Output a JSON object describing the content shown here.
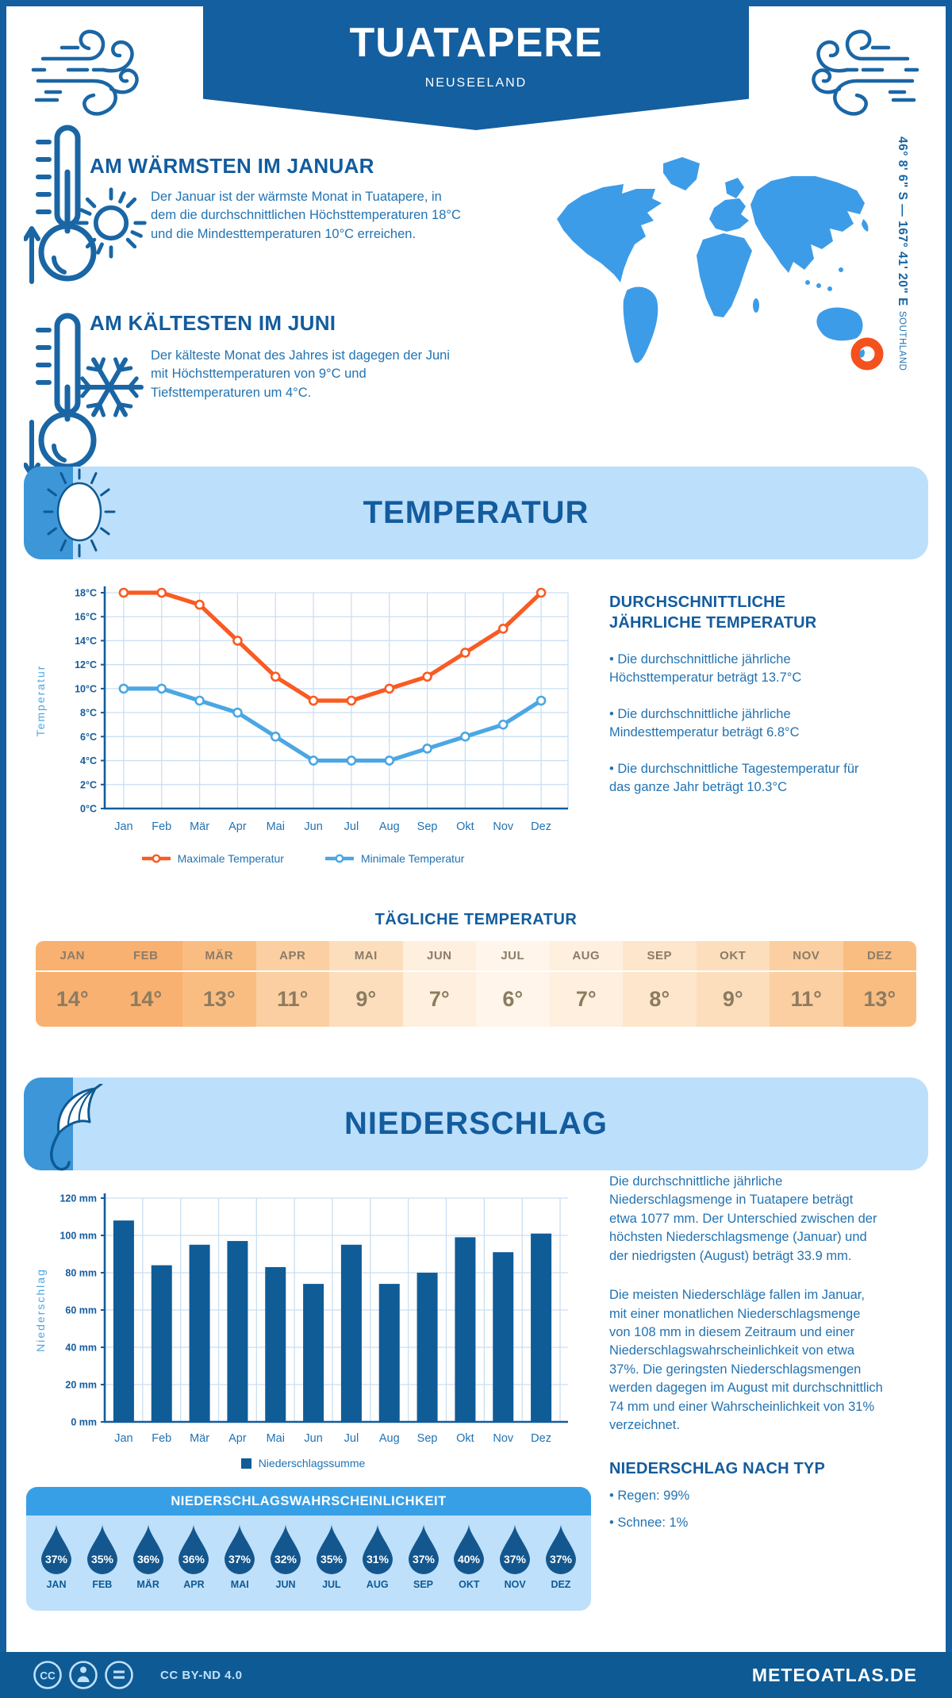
{
  "header": {
    "title": "TUATAPERE",
    "subtitle": "NEUSEELAND"
  },
  "location": {
    "coordinates": "46° 8' 6\" S — 167° 41' 20\" E",
    "region": "SOUTHLAND"
  },
  "sections": {
    "warmest": {
      "heading": "AM WÄRMSTEN IM JANUAR",
      "body": "Der Januar ist der wärmste Monat in Tuatapere, in dem die durchschnittlichen Höchsttemperaturen 18°C und die Mindesttemperaturen 10°C erreichen."
    },
    "coldest": {
      "heading": "AM KÄLTESTEN IM JUNI",
      "body": "Der kälteste Monat des Jahres ist dagegen der Juni mit Höchsttemperaturen von 9°C und Tiefsttemperaturen um 4°C."
    },
    "temperature": {
      "banner": "TEMPERATUR",
      "panel_heading": "DURCHSCHNITTLICHE JÄHRLICHE TEMPERATUR",
      "bullets": [
        "Die durchschnittliche jährliche Höchsttemperatur beträgt 13.7°C",
        "Die durchschnittliche jährliche Mindesttemperatur beträgt 6.8°C",
        "Die durchschnittliche Tagestemperatur für das ganze Jahr beträgt 10.3°C"
      ]
    },
    "daily": {
      "heading": "TÄGLICHE TEMPERATUR"
    },
    "precipitation": {
      "banner": "NIEDERSCHLAG",
      "paragraphs": [
        "Die durchschnittliche jährliche Niederschlagsmenge in Tuatapere beträgt etwa 1077 mm. Der Unterschied zwischen der höchsten Niederschlagsmenge (Januar) und der niedrigsten (August) beträgt 33.9 mm.",
        "Die meisten Niederschläge fallen im Januar, mit einer monatlichen Niederschlagsmenge von 108 mm in diesem Zeitraum und einer Niederschlagswahrscheinlichkeit von etwa 37%. Die geringsten Niederschlagsmengen werden dagegen im August mit durchschnittlich 74 mm und einer Wahrscheinlichkeit von 31% verzeichnet."
      ],
      "type_heading": "NIEDERSCHLAG NACH TYP",
      "type_bullets": [
        "Regen: 99%",
        "Schnee: 1%"
      ]
    },
    "probability": {
      "heading": "NIEDERSCHLAGSWAHRSCHEINLICHKEIT"
    }
  },
  "footer": {
    "license": "CC BY-ND 4.0",
    "site": "METEOATLAS.DE"
  },
  "chart_data": [
    {
      "id": "temperature-line",
      "type": "line",
      "x": [
        "Jan",
        "Feb",
        "Mär",
        "Apr",
        "Mai",
        "Jun",
        "Jul",
        "Aug",
        "Sep",
        "Okt",
        "Nov",
        "Dez"
      ],
      "series": [
        {
          "name": "Maximale Temperatur",
          "color": "#F95B22",
          "values": [
            18,
            18,
            17,
            14,
            11,
            9,
            9,
            10,
            11,
            13,
            15,
            18
          ]
        },
        {
          "name": "Minimale Temperatur",
          "color": "#4BA7E3",
          "values": [
            10,
            10,
            9,
            8,
            6,
            4,
            4,
            4,
            5,
            6,
            7,
            9
          ]
        }
      ],
      "ylabel": "Temperatur",
      "ylim": [
        0,
        18
      ],
      "ytick_step": 2,
      "ytick_suffix": "°C",
      "grid": true,
      "legend_position": "bottom"
    },
    {
      "id": "daily-temperature-table",
      "type": "table",
      "categories": [
        "JAN",
        "FEB",
        "MÄR",
        "APR",
        "MAI",
        "JUN",
        "JUL",
        "AUG",
        "SEP",
        "OKT",
        "NOV",
        "DEZ"
      ],
      "values": [
        14,
        14,
        13,
        11,
        9,
        7,
        6,
        7,
        8,
        9,
        11,
        13
      ],
      "unit": "°",
      "palette": {
        "6": "#FFF5EA",
        "7": "#FEEFDE",
        "8": "#FDE6CC",
        "9": "#FCDEBD",
        "11": "#FBCFA1",
        "13": "#F9BD82",
        "14": "#F8B170"
      }
    },
    {
      "id": "precipitation-bar",
      "type": "bar",
      "x": [
        "Jan",
        "Feb",
        "Mär",
        "Apr",
        "Mai",
        "Jun",
        "Jul",
        "Aug",
        "Sep",
        "Okt",
        "Nov",
        "Dez"
      ],
      "series": [
        {
          "name": "Niederschlagssumme",
          "color": "#0F5C97",
          "values": [
            108,
            84,
            95,
            97,
            83,
            74,
            95,
            74,
            80,
            99,
            91,
            101
          ]
        }
      ],
      "ylabel": "Niederschlag",
      "ylim": [
        0,
        120
      ],
      "ytick_step": 20,
      "ytick_suffix": " mm",
      "grid": true,
      "legend_position": "bottom"
    },
    {
      "id": "precipitation-probability",
      "type": "pictogram",
      "categories": [
        "JAN",
        "FEB",
        "MÄR",
        "APR",
        "MAI",
        "JUN",
        "JUL",
        "AUG",
        "SEP",
        "OKT",
        "NOV",
        "DEZ"
      ],
      "values": [
        37,
        35,
        36,
        36,
        37,
        32,
        35,
        31,
        37,
        40,
        37,
        37
      ],
      "unit": "%"
    }
  ],
  "colors": {
    "primary_dark_blue": "#145F9F",
    "heading_blue": "#135C9E",
    "body_blue": "#2273B2",
    "banner_light_blue": "#BCDFFB",
    "banner_strip_blue": "#3C96D8",
    "map_blue": "#3D9CE8",
    "marker_orange": "#F4511E",
    "max_temp_orange": "#F95B22",
    "min_temp_blue": "#4BA7E3",
    "grid_blue": "#CADFF2",
    "bar_blue": "#0F5C97",
    "drop_blue": "#14578E",
    "prob_header_blue": "#379FE6",
    "prob_body_blue": "#BEE0FB",
    "table_text_brown": "#8C7B64",
    "footer_blue": "#0E5A94",
    "icon_blue": "#1A66A5"
  }
}
